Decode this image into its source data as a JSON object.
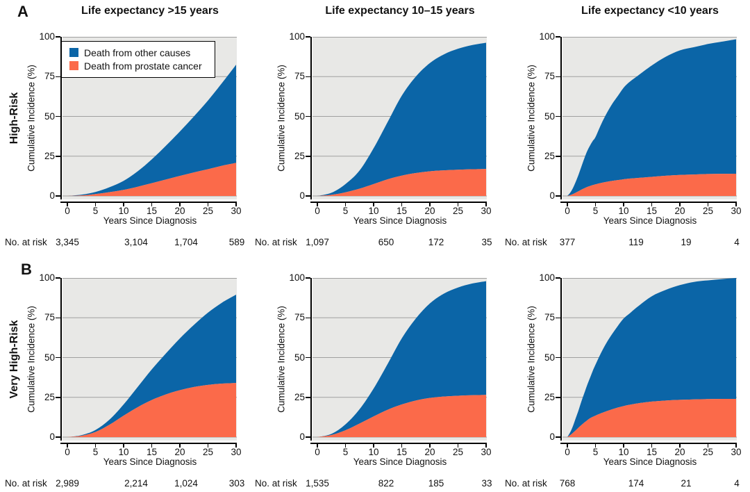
{
  "figure": {
    "panel_labels": [
      "A",
      "B"
    ],
    "column_titles": [
      "Life expectancy >15 years",
      "Life expectancy 10–15 years",
      "Life expectancy <10 years"
    ],
    "row_labels": [
      "High-Risk",
      "Very High-Risk"
    ],
    "y_axis_label": "Cumulative Incidence (%)",
    "x_axis_label": "Years Since Diagnosis",
    "at_risk_label": "No. at risk",
    "y_ticks": [
      "100",
      "75",
      "50",
      "25",
      "0"
    ],
    "y_tick_values": [
      100,
      75,
      50,
      25,
      0
    ],
    "x_ticks": [
      "0",
      "5",
      "10",
      "15",
      "20",
      "25",
      "30"
    ],
    "x_tick_values": [
      0,
      5,
      10,
      15,
      20,
      25,
      30
    ],
    "legend": [
      {
        "label": "Death from other causes",
        "color": "#0b65a7"
      },
      {
        "label": "Death from prostate cancer",
        "color": "#fb6a4a"
      }
    ],
    "colors": {
      "other_causes": "#0b65a7",
      "prostate_cancer": "#fb6a4a",
      "plot_background": "#e8e8e6",
      "gridline": "#9f9f9f",
      "axis": "#000000",
      "text": "#111111"
    }
  },
  "chart_data": [
    {
      "panel": "A1",
      "type": "area",
      "risk_group": "High-Risk",
      "life_expectancy": ">15 years",
      "ylabel": "Cumulative Incidence (%)",
      "xlabel": "Years Since Diagnosis",
      "ylim": [
        0,
        100
      ],
      "xlim": [
        0,
        30
      ],
      "series_note": "stacked: prostate_cancer on bottom (orange), other_causes above (blue); top edge = total_mortality",
      "x": [
        0,
        2.5,
        5,
        7.5,
        10,
        12.5,
        15,
        17.5,
        20,
        22.5,
        25,
        27.5,
        30
      ],
      "total_mortality": [
        0,
        0.8,
        2.5,
        5.5,
        9.5,
        15.5,
        23,
        31.5,
        40.5,
        50,
        60,
        71,
        82.5
      ],
      "prostate_cancer": [
        0,
        0.3,
        1.2,
        2.4,
        3.8,
        5.8,
        8,
        10.3,
        12.6,
        14.8,
        16.8,
        19,
        20.8
      ],
      "at_risk": {
        "years": [
          0,
          10,
          20,
          30
        ],
        "values": [
          "3,345",
          "3,104",
          "1,704",
          "589"
        ]
      }
    },
    {
      "panel": "A2",
      "type": "area",
      "risk_group": "High-Risk",
      "life_expectancy": "10–15 years",
      "ylabel": "Cumulative Incidence (%)",
      "xlabel": "Years Since Diagnosis",
      "ylim": [
        0,
        100
      ],
      "xlim": [
        0,
        30
      ],
      "series_note": "stacked: prostate_cancer on bottom (orange), other_causes above (blue); top edge = total_mortality",
      "x": [
        0,
        2.5,
        5,
        7.5,
        10,
        12.5,
        15,
        17.5,
        20,
        22.5,
        25,
        27.5,
        30
      ],
      "total_mortality": [
        0,
        2,
        7.5,
        16,
        30,
        46.5,
        63,
        75,
        83.5,
        89,
        92.5,
        94.8,
        96.3
      ],
      "prostate_cancer": [
        0,
        0.7,
        2.3,
        4.6,
        7.5,
        10.5,
        12.8,
        14.4,
        15.5,
        16.1,
        16.5,
        16.8,
        17
      ],
      "at_risk": {
        "years": [
          0,
          10,
          20,
          30
        ],
        "values": [
          "1,097",
          "650",
          "172",
          "35"
        ]
      }
    },
    {
      "panel": "A3",
      "type": "area",
      "risk_group": "High-Risk",
      "life_expectancy": "<10 years",
      "ylabel": "Cumulative Incidence (%)",
      "xlabel": "Years Since Diagnosis",
      "ylim": [
        0,
        100
      ],
      "xlim": [
        0,
        30
      ],
      "series_note": "stacked: prostate_cancer on bottom (orange), other_causes above (blue); top edge = total_mortality",
      "x": [
        0,
        0.5,
        1,
        1.5,
        2,
        2.5,
        3,
        3.5,
        4,
        4.5,
        5,
        6,
        7,
        8,
        9,
        10,
        11,
        12.5,
        15,
        17.5,
        20,
        22.5,
        25,
        27.5,
        30
      ],
      "total_mortality": [
        0,
        2,
        5,
        9,
        13.5,
        18.5,
        23.5,
        28,
        31.5,
        34.5,
        37,
        45,
        52,
        58,
        63,
        68,
        71.5,
        75.5,
        82,
        87.5,
        91.5,
        93.5,
        95.5,
        97,
        98.5
      ],
      "prostate_cancer": [
        0,
        0.5,
        1.2,
        2.1,
        3,
        4,
        4.8,
        5.6,
        6.2,
        6.8,
        7.3,
        8.2,
        8.9,
        9.5,
        10,
        10.5,
        10.9,
        11.3,
        12,
        12.7,
        13.2,
        13.5,
        13.8,
        13.9,
        14
      ],
      "at_risk": {
        "years": [
          0,
          10,
          20,
          30
        ],
        "values": [
          "377",
          "119",
          "19",
          "4"
        ]
      }
    },
    {
      "panel": "B1",
      "type": "area",
      "risk_group": "Very High-Risk",
      "life_expectancy": ">15 years",
      "ylabel": "Cumulative Incidence (%)",
      "xlabel": "Years Since Diagnosis",
      "ylim": [
        0,
        100
      ],
      "xlim": [
        0,
        30
      ],
      "series_note": "stacked: prostate_cancer on bottom (orange), other_causes above (blue); top edge = total_mortality",
      "x": [
        0,
        2.5,
        5,
        7.5,
        10,
        12.5,
        15,
        17.5,
        20,
        22.5,
        25,
        27.5,
        30
      ],
      "total_mortality": [
        0,
        1.2,
        4.5,
        11,
        20.5,
        31.5,
        42.5,
        52.5,
        62,
        70.5,
        78.2,
        84.5,
        89.5
      ],
      "prostate_cancer": [
        0,
        0.8,
        3.2,
        7.8,
        13.5,
        18.8,
        23.3,
        26.8,
        29.5,
        31.5,
        32.8,
        33.6,
        34
      ],
      "at_risk": {
        "years": [
          0,
          10,
          20,
          30
        ],
        "values": [
          "2,989",
          "2,214",
          "1,024",
          "303"
        ]
      }
    },
    {
      "panel": "B2",
      "type": "area",
      "risk_group": "Very High-Risk",
      "life_expectancy": "10–15 years",
      "ylabel": "Cumulative Incidence (%)",
      "xlabel": "Years Since Diagnosis",
      "ylim": [
        0,
        100
      ],
      "xlim": [
        0,
        30
      ],
      "series_note": "stacked: prostate_cancer on bottom (orange), other_causes above (blue); top edge = total_mortality",
      "x": [
        0,
        2.5,
        5,
        7.5,
        10,
        12.5,
        15,
        17.5,
        20,
        22.5,
        25,
        27.5,
        30
      ],
      "total_mortality": [
        0,
        2,
        8,
        17.5,
        30.5,
        46,
        62,
        74.5,
        84,
        90.2,
        94,
        96.5,
        98
      ],
      "prostate_cancer": [
        0,
        1.3,
        4.3,
        8.5,
        13,
        17.2,
        20.5,
        23,
        24.6,
        25.5,
        26,
        26.3,
        26.5
      ],
      "at_risk": {
        "years": [
          0,
          10,
          20,
          30
        ],
        "values": [
          "1,535",
          "822",
          "185",
          "33"
        ]
      }
    },
    {
      "panel": "B3",
      "type": "area",
      "risk_group": "Very High-Risk",
      "life_expectancy": "<10 years",
      "ylabel": "Cumulative Incidence (%)",
      "xlabel": "Years Since Diagnosis",
      "ylim": [
        0,
        100
      ],
      "xlim": [
        0,
        30
      ],
      "series_note": "stacked: prostate_cancer on bottom (orange), other_causes above (blue); top edge = total_mortality",
      "x": [
        0,
        0.5,
        1,
        1.5,
        2,
        2.5,
        3,
        3.5,
        4,
        4.5,
        5,
        6,
        7,
        8,
        9,
        10,
        11,
        12.5,
        15,
        17.5,
        20,
        22.5,
        25,
        27.5,
        30
      ],
      "total_mortality": [
        0,
        3,
        7,
        12,
        17,
        22.5,
        27.5,
        32.5,
        37,
        41.5,
        45.5,
        53,
        59.5,
        65,
        70,
        74.5,
        77.5,
        82,
        88.5,
        92.5,
        95.5,
        97.5,
        98.5,
        99.3,
        100
      ],
      "prostate_cancer": [
        0,
        1.2,
        2.7,
        4.3,
        6,
        7.6,
        9.1,
        10.5,
        11.8,
        12.7,
        13.5,
        15,
        16.3,
        17.5,
        18.6,
        19.5,
        20.3,
        21.2,
        22.3,
        23,
        23.4,
        23.7,
        23.9,
        24,
        24
      ],
      "at_risk": {
        "years": [
          0,
          10,
          20,
          30
        ],
        "values": [
          "768",
          "174",
          "21",
          "4"
        ]
      }
    }
  ]
}
